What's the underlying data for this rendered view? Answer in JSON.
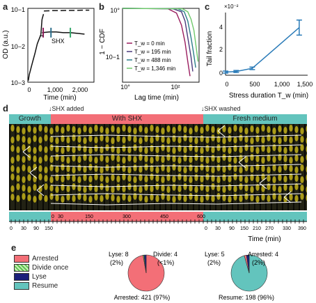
{
  "panels": {
    "a": {
      "label": "a",
      "ylabel": "OD (a.u.)",
      "xlabel": "Time (min)",
      "yticks": [
        "10−1",
        "10−2",
        "10−3"
      ],
      "xticks": [
        "0",
        "1,000",
        "2,000"
      ],
      "annotation": "SHX",
      "colors": {
        "line": "#111111",
        "dash": "#111111",
        "m1": "#8e1a59",
        "m2": "#2c6f8c",
        "m3": "#34a86b"
      }
    },
    "b": {
      "label": "b",
      "ylabel": "1 − CDF",
      "xlabel": "Lag time (min)",
      "yticks": [
        "10°",
        "10−1"
      ],
      "xticks": [
        "10°",
        "10²"
      ],
      "legend": [
        {
          "label": "T_w = 0 min",
          "color": "#9a1c5e"
        },
        {
          "label": "T_w = 195 min",
          "color": "#4a3a7c"
        },
        {
          "label": "T_w = 488 min",
          "color": "#2b7e8a"
        },
        {
          "label": "T_w = 1,346 min",
          "color": "#6fc96b"
        }
      ]
    },
    "c": {
      "label": "c",
      "exponent": "×10⁻²",
      "ylabel": "Tail fraction",
      "xlabel": "Stress duration T_w (min)",
      "yticks": [
        "4",
        "2",
        "0"
      ],
      "xticks": [
        "0",
        "500",
        "1,000",
        "1,500"
      ],
      "color": "#2a7bb8"
    },
    "d": {
      "label": "d",
      "events": {
        "added": "↓SHX added",
        "washed": "↓SHX washed"
      },
      "phases": [
        {
          "label": "Growth",
          "color": "#63c4bd"
        },
        {
          "label": "With SHX",
          "color": "#f36f77"
        },
        {
          "label": "Fresh medium",
          "color": "#63c4bd"
        }
      ],
      "axis_ticks_left": [
        "0",
        "30",
        "90",
        "150"
      ],
      "axis_ticks_mid": [
        "0",
        "30",
        "150",
        "300",
        "450",
        "600"
      ],
      "axis_ticks_right": [
        "0",
        "30",
        "90",
        "150",
        "210",
        "270",
        "330",
        "390"
      ],
      "xlabel": "Time (min)"
    },
    "e": {
      "label": "e",
      "legend": [
        {
          "label": "Arrested",
          "color": "#f36f77"
        },
        {
          "label": "Divide once",
          "color": "#5cc24f"
        },
        {
          "label": "Lyse",
          "color": "#1b1f7a"
        },
        {
          "label": "Resume",
          "color": "#63c4bd"
        }
      ],
      "pie1": {
        "lyse_label": "Lyse: 8",
        "lyse_pct": "(2%)",
        "divide_label": "Divide: 4",
        "divide_pct": "(<1%)",
        "main_label": "Arrested: 421 (97%)"
      },
      "pie2": {
        "lyse_label": "Lyse: 5",
        "lyse_pct": "(2%)",
        "arrest_label": "Arrested: 4",
        "arrest_pct": "(2%)",
        "main_label": "Resume: 198 (96%)"
      }
    }
  },
  "chart_data": [
    {
      "type": "line",
      "panel": "a",
      "xlim": [
        0,
        2800
      ],
      "yscale": "log",
      "ylim": [
        0.001,
        0.1
      ],
      "series": [
        {
          "x": [
            20,
            60,
            100,
            200,
            300,
            400,
            500,
            550,
            600,
            700,
            900,
            1100,
            1400,
            1700,
            2000,
            2300,
            2600
          ],
          "y": [
            0.0011,
            0.0016,
            0.002,
            0.0035,
            0.006,
            0.011,
            0.016,
            0.019,
            0.05,
            0.085,
            0.086,
            0.087,
            0.087,
            0.088,
            0.088,
            0.089,
            0.089
          ]
        },
        {
          "x": [
            600,
            900,
            1200,
            1500,
            1800,
            2100,
            2400
          ],
          "y": [
            0.022,
            0.023,
            0.023,
            0.022,
            0.022,
            0.021,
            0.02
          ]
        }
      ]
    },
    {
      "type": "line",
      "panel": "b",
      "xscale": "log",
      "yscale": "log",
      "xlim": [
        1,
        500
      ],
      "ylim": [
        0.03,
        1
      ],
      "series": [
        {
          "x": [
            1,
            40,
            80,
            120,
            160,
            200,
            240
          ],
          "y": [
            1,
            0.98,
            0.8,
            0.45,
            0.2,
            0.08,
            0.04
          ]
        },
        {
          "x": [
            1,
            60,
            120,
            160,
            200,
            260,
            300
          ],
          "y": [
            1,
            0.98,
            0.85,
            0.55,
            0.25,
            0.1,
            0.05
          ]
        },
        {
          "x": [
            1,
            90,
            150,
            200,
            260,
            320,
            380
          ],
          "y": [
            1,
            0.98,
            0.85,
            0.55,
            0.25,
            0.12,
            0.06
          ]
        },
        {
          "x": [
            1,
            130,
            200,
            260,
            330,
            400,
            460
          ],
          "y": [
            1,
            0.98,
            0.85,
            0.6,
            0.35,
            0.15,
            0.08
          ]
        }
      ]
    },
    {
      "type": "line",
      "panel": "c",
      "xlim": [
        0,
        1500
      ],
      "ylim": [
        0,
        0.05
      ],
      "series": [
        {
          "x": [
            0,
            195,
            488,
            1346
          ],
          "y": [
            0.0025,
            0.003,
            0.0055,
            0.038
          ],
          "yerr": [
            0.0008,
            0.0008,
            0.001,
            0.006
          ]
        }
      ]
    },
    {
      "type": "pie",
      "panel": "e-left",
      "labels": [
        "Arrested",
        "Divide once",
        "Lyse"
      ],
      "values": [
        421,
        4,
        8
      ]
    },
    {
      "type": "pie",
      "panel": "e-right",
      "labels": [
        "Resume",
        "Arrested",
        "Lyse"
      ],
      "values": [
        198,
        4,
        5
      ]
    }
  ]
}
